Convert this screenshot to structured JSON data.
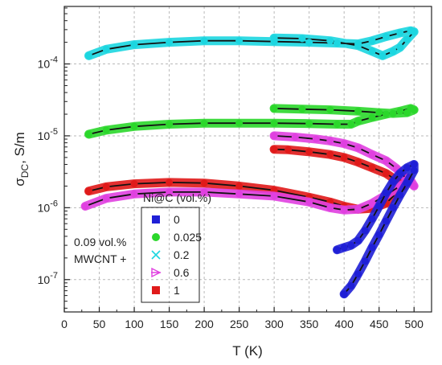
{
  "chart_data": {
    "type": "scatter",
    "title": "",
    "xlabel": "T (K)",
    "ylabel_main": "σ",
    "ylabel_sub": "DC",
    "ylabel_rest": ", S/m",
    "x_ticks": [
      "0",
      "50",
      "100",
      "150",
      "200",
      "250",
      "300",
      "350",
      "400",
      "450",
      "500"
    ],
    "y_ticks": [
      {
        "value": 1e-07,
        "base": "10",
        "exp": "-7"
      },
      {
        "value": 1e-06,
        "base": "10",
        "exp": "-6"
      },
      {
        "value": 1e-05,
        "base": "10",
        "exp": "-5"
      },
      {
        "value": 0.0001,
        "base": "10",
        "exp": "-4"
      }
    ],
    "xlim": [
      0,
      525
    ],
    "ylim_log10": [
      -7.45,
      -3.2
    ],
    "y_scale": "log",
    "grid": true,
    "legend": {
      "title": "Ni@C (vol.%)",
      "placement": "bottom-center",
      "entries": [
        "0",
        "0.025",
        "0.2",
        "0.6",
        "1"
      ]
    },
    "annotation_lines": [
      "0.09 vol.%",
      "MWCNT +"
    ],
    "series": [
      {
        "name": "0",
        "color": "#1f1fd6",
        "marker": "square",
        "points": [
          [
            390,
            2.6e-07
          ],
          [
            400,
            2.8e-07
          ],
          [
            410,
            3e-07
          ],
          [
            420,
            3.5e-07
          ],
          [
            430,
            4.8e-07
          ],
          [
            440,
            7e-07
          ],
          [
            450,
            1.05e-06
          ],
          [
            460,
            1.6e-06
          ],
          [
            470,
            2.3e-06
          ],
          [
            480,
            3e-06
          ],
          [
            490,
            3.6e-06
          ],
          [
            500,
            4e-06
          ],
          [
            500,
            3.3e-06
          ],
          [
            490,
            2.2e-06
          ],
          [
            480,
            1.5e-06
          ],
          [
            470,
            1e-06
          ],
          [
            460,
            6.5e-07
          ],
          [
            450,
            4.2e-07
          ],
          [
            440,
            2.8e-07
          ],
          [
            430,
            1.8e-07
          ],
          [
            420,
            1.2e-07
          ],
          [
            410,
            8.2e-08
          ],
          [
            400,
            6.3e-08
          ]
        ]
      },
      {
        "name": "0.025",
        "color": "#2bd72b",
        "marker": "circle",
        "points": [
          [
            35,
            1.05e-05
          ],
          [
            60,
            1.2e-05
          ],
          [
            100,
            1.35e-05
          ],
          [
            150,
            1.45e-05
          ],
          [
            200,
            1.5e-05
          ],
          [
            250,
            1.5e-05
          ],
          [
            300,
            1.5e-05
          ],
          [
            350,
            1.48e-05
          ],
          [
            390,
            1.45e-05
          ],
          [
            410,
            1.45e-05
          ],
          [
            420,
            1.6e-05
          ],
          [
            440,
            1.8e-05
          ],
          [
            460,
            2e-05
          ],
          [
            480,
            2.2e-05
          ],
          [
            495,
            2.4e-05
          ],
          [
            500,
            2.3e-05
          ],
          [
            490,
            2.1e-05
          ],
          [
            470,
            2.05e-05
          ],
          [
            450,
            2.1e-05
          ],
          [
            420,
            2.2e-05
          ],
          [
            380,
            2.3e-05
          ],
          [
            340,
            2.35e-05
          ],
          [
            300,
            2.4e-05
          ]
        ]
      },
      {
        "name": "0.2",
        "color": "#1cd6e0",
        "marker": "x",
        "points": [
          [
            35,
            0.00013
          ],
          [
            60,
            0.00016
          ],
          [
            100,
            0.000185
          ],
          [
            150,
            0.0002
          ],
          [
            200,
            0.00021
          ],
          [
            250,
            0.00021
          ],
          [
            300,
            0.000205
          ],
          [
            350,
            0.0002
          ],
          [
            390,
            0.000195
          ],
          [
            420,
            0.00019
          ],
          [
            440,
            0.00021
          ],
          [
            460,
            0.00024
          ],
          [
            480,
            0.00027
          ],
          [
            495,
            0.00029
          ],
          [
            500,
            0.00028
          ],
          [
            490,
            0.00022
          ],
          [
            480,
            0.00017
          ],
          [
            470,
            0.00015
          ],
          [
            455,
            0.00013
          ],
          [
            440,
            0.00015
          ],
          [
            420,
            0.00018
          ],
          [
            380,
            0.00021
          ],
          [
            340,
            0.000225
          ],
          [
            300,
            0.00023
          ]
        ]
      },
      {
        "name": "0.6",
        "color": "#e040e0",
        "marker": "triangle-right",
        "points": [
          [
            30,
            1.05e-06
          ],
          [
            60,
            1.35e-06
          ],
          [
            100,
            1.55e-06
          ],
          [
            150,
            1.65e-06
          ],
          [
            200,
            1.65e-06
          ],
          [
            250,
            1.55e-06
          ],
          [
            300,
            1.45e-06
          ],
          [
            350,
            1.2e-06
          ],
          [
            380,
            1e-06
          ],
          [
            400,
            9.3e-07
          ],
          [
            420,
            9.5e-07
          ],
          [
            440,
            1.15e-06
          ],
          [
            460,
            1.5e-06
          ],
          [
            480,
            2e-06
          ],
          [
            495,
            2.4e-06
          ],
          [
            500,
            2e-06
          ],
          [
            490,
            2.5e-06
          ],
          [
            475,
            3.5e-06
          ],
          [
            460,
            4.5e-06
          ],
          [
            440,
            5.5e-06
          ],
          [
            420,
            6.8e-06
          ],
          [
            400,
            7.8e-06
          ],
          [
            380,
            8.5e-06
          ],
          [
            360,
            9e-06
          ],
          [
            330,
            9.6e-06
          ],
          [
            300,
            1e-05
          ]
        ]
      },
      {
        "name": "1",
        "color": "#e01a1a",
        "marker": "square",
        "points": [
          [
            35,
            1.7e-06
          ],
          [
            60,
            1.95e-06
          ],
          [
            100,
            2.15e-06
          ],
          [
            150,
            2.25e-06
          ],
          [
            200,
            2.2e-06
          ],
          [
            250,
            2e-06
          ],
          [
            300,
            1.75e-06
          ],
          [
            350,
            1.4e-06
          ],
          [
            380,
            1.2e-06
          ],
          [
            400,
            1.05e-06
          ],
          [
            420,
            9.5e-07
          ],
          [
            440,
            9.8e-07
          ],
          [
            460,
            1.15e-06
          ],
          [
            475,
            1.6e-06
          ],
          [
            485,
            2.5e-06
          ],
          [
            490,
            2.6e-06
          ],
          [
            485,
            2e-06
          ],
          [
            475,
            2.4e-06
          ],
          [
            460,
            3e-06
          ],
          [
            440,
            3.6e-06
          ],
          [
            420,
            4.3e-06
          ],
          [
            400,
            5e-06
          ],
          [
            380,
            5.5e-06
          ],
          [
            350,
            6e-06
          ],
          [
            320,
            6.4e-06
          ],
          [
            300,
            6.5e-06
          ]
        ]
      }
    ]
  }
}
